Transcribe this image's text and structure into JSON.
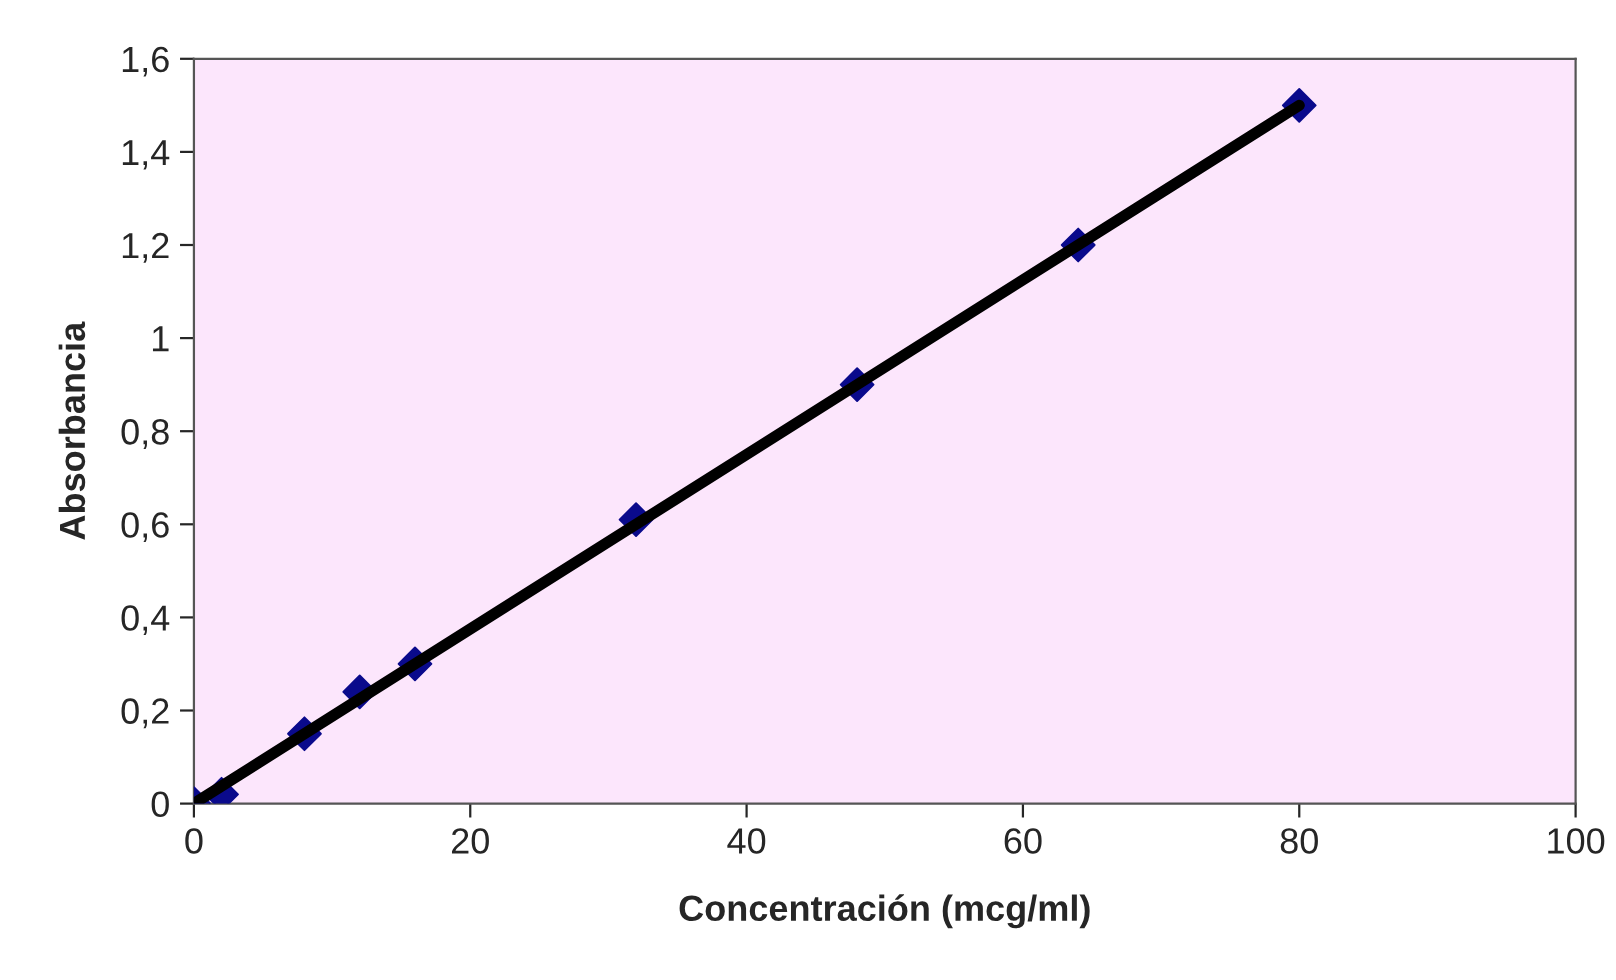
{
  "chart_data": {
    "type": "scatter",
    "xlabel": "Concentración (mcg/ml)",
    "ylabel": "Absorbancia",
    "series": [
      {
        "color": "#0a0a8c",
        "marker": "diamond",
        "x": [
          0,
          2,
          8,
          12,
          16,
          32,
          48,
          64,
          80
        ],
        "values": [
          0,
          0.02,
          0.15,
          0.24,
          0.3,
          0.61,
          0.9,
          1.2,
          1.5
        ]
      },
      {
        "type": "line",
        "color": "#000000",
        "marker": "none",
        "line_style": "solid",
        "x": [
          0,
          80
        ],
        "values": [
          0,
          1.5
        ]
      }
    ],
    "xlim": [
      0,
      100
    ],
    "xticks": [
      0,
      20,
      40,
      60,
      80,
      100
    ],
    "ylim": [
      0,
      1.6
    ],
    "yticks": [
      0,
      {
        "value": 0.2,
        "label": "0,2"
      },
      {
        "value": 0.4,
        "label": "0,4"
      },
      {
        "value": 0.6,
        "label": "0,6"
      },
      {
        "value": 0.8,
        "label": "0,8"
      },
      1,
      {
        "value": 1.2,
        "label": "1,2"
      },
      {
        "value": 1.4,
        "label": "1,4"
      },
      {
        "value": 1.6,
        "label": "1,6"
      }
    ],
    "grid": false,
    "legend": false
  }
}
